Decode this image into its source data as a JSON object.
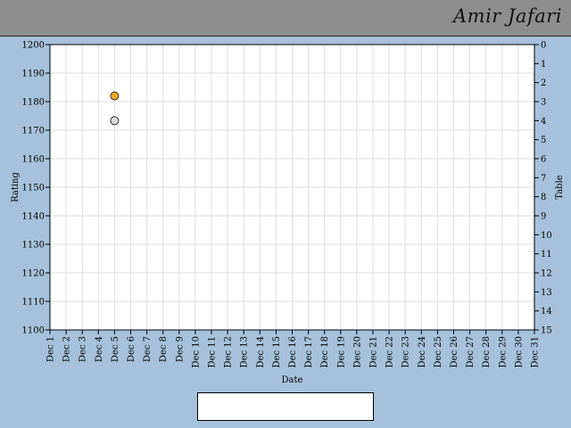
{
  "header": {
    "name": "Amir Jafari"
  },
  "chart_data": {
    "type": "scatter",
    "xlabel": "Date",
    "ylabel": "Rating",
    "y2label": "Table",
    "x_categories": [
      "Dec 1",
      "Dec 2",
      "Dec 3",
      "Dec 4",
      "Dec 5",
      "Dec 6",
      "Dec 7",
      "Dec 8",
      "Dec 9",
      "Dec 10",
      "Dec 11",
      "Dec 12",
      "Dec 13",
      "Dec 14",
      "Dec 15",
      "Dec 16",
      "Dec 17",
      "Dec 18",
      "Dec 19",
      "Dec 20",
      "Dec 21",
      "Dec 22",
      "Dec 23",
      "Dec 24",
      "Dec 25",
      "Dec 26",
      "Dec 27",
      "Dec 28",
      "Dec 29",
      "Dec 30",
      "Dec 31"
    ],
    "ylim": [
      1100,
      1200
    ],
    "y_ticks": [
      1100,
      1110,
      1120,
      1130,
      1140,
      1150,
      1160,
      1170,
      1180,
      1190,
      1200
    ],
    "y2lim": [
      0,
      15
    ],
    "y2_inverted": true,
    "y2_ticks": [
      0,
      1,
      2,
      3,
      4,
      5,
      6,
      7,
      8,
      9,
      10,
      11,
      12,
      13,
      14,
      15
    ],
    "grid": true,
    "legend_placement": "bottom-center",
    "series": [
      {
        "name": "Rating",
        "axis": "left",
        "line_color": "#00dd00",
        "marker_color": "#f5a623",
        "points": [
          {
            "x": "Dec 5",
            "y": 1182
          }
        ]
      },
      {
        "name": "Table",
        "axis": "right",
        "line_color": "#0000cc",
        "marker_color": "#d8d8d8",
        "points": [
          {
            "x": "Dec 5",
            "y": 4
          }
        ]
      }
    ]
  }
}
